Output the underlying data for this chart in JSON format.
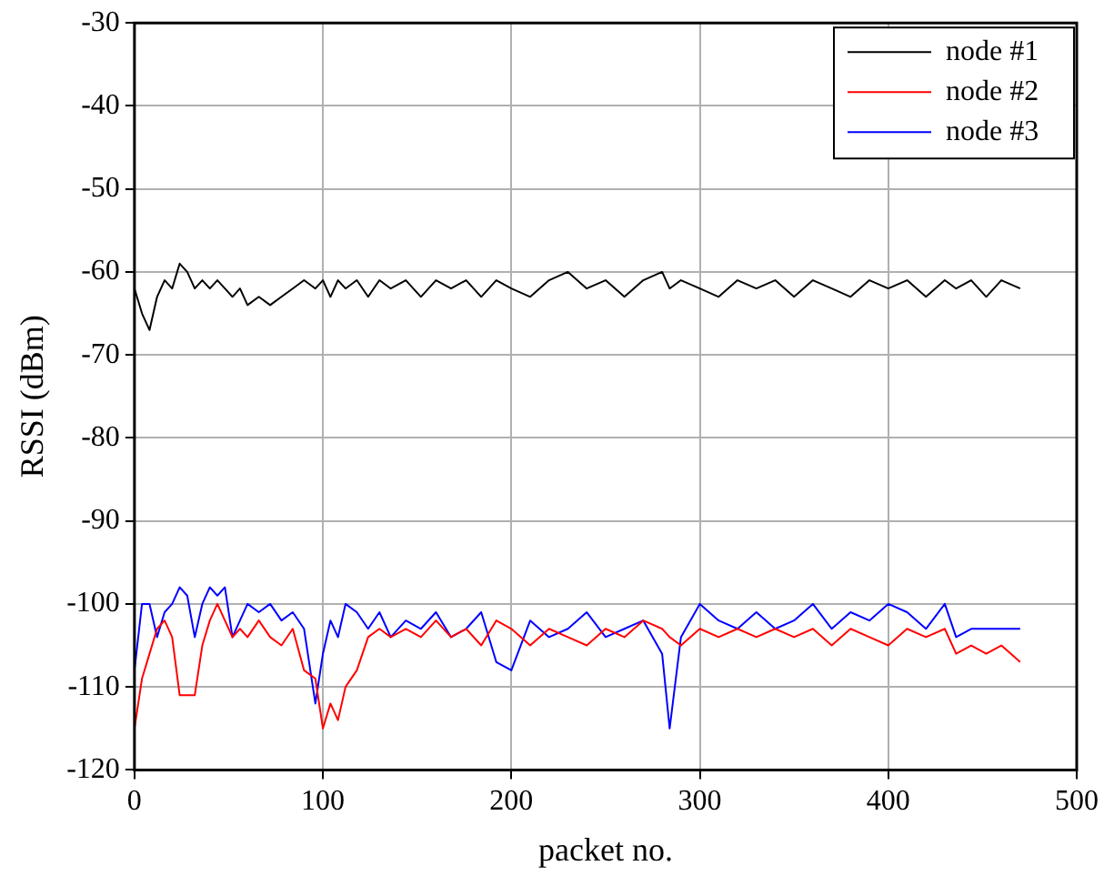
{
  "chart_data": {
    "type": "line",
    "xlabel": "packet no.",
    "ylabel": "RSSI (dBm)",
    "x": [
      0,
      4,
      8,
      12,
      16,
      20,
      24,
      28,
      32,
      36,
      40,
      44,
      48,
      52,
      56,
      60,
      66,
      72,
      78,
      84,
      90,
      96,
      100,
      104,
      108,
      112,
      118,
      124,
      130,
      136,
      144,
      152,
      160,
      168,
      176,
      184,
      192,
      200,
      210,
      220,
      230,
      240,
      250,
      260,
      270,
      280,
      284,
      290,
      300,
      310,
      320,
      330,
      340,
      350,
      360,
      370,
      380,
      390,
      400,
      410,
      420,
      430,
      436,
      444,
      452,
      460,
      470
    ],
    "series": [
      {
        "name": "node #1",
        "color": "#000000",
        "values": [
          -62,
          -65,
          -67,
          -63,
          -61,
          -62,
          -59,
          -60,
          -62,
          -61,
          -62,
          -61,
          -62,
          -63,
          -62,
          -64,
          -63,
          -64,
          -63,
          -62,
          -61,
          -62,
          -61,
          -63,
          -61,
          -62,
          -61,
          -63,
          -61,
          -62,
          -61,
          -63,
          -61,
          -62,
          -61,
          -63,
          -61,
          -62,
          -63,
          -61,
          -60,
          -62,
          -61,
          -63,
          -61,
          -60,
          -62,
          -61,
          -62,
          -63,
          -61,
          -62,
          -61,
          -63,
          -61,
          -62,
          -63,
          -61,
          -62,
          -61,
          -63,
          -61,
          -62,
          -61,
          -63,
          -61,
          -62
        ]
      },
      {
        "name": "node #2",
        "color": "#ff0000",
        "values": [
          -115,
          -109,
          -106,
          -103,
          -102,
          -104,
          -111,
          -111,
          -111,
          -105,
          -102,
          -100,
          -102,
          -104,
          -103,
          -104,
          -102,
          -104,
          -105,
          -103,
          -108,
          -109,
          -115,
          -112,
          -114,
          -110,
          -108,
          -104,
          -103,
          -104,
          -103,
          -104,
          -102,
          -104,
          -103,
          -105,
          -102,
          -103,
          -105,
          -103,
          -104,
          -105,
          -103,
          -104,
          -102,
          -103,
          -104,
          -105,
          -103,
          -104,
          -103,
          -104,
          -103,
          -104,
          -103,
          -105,
          -103,
          -104,
          -105,
          -103,
          -104,
          -103,
          -106,
          -105,
          -106,
          -105,
          -107
        ]
      },
      {
        "name": "node #3",
        "color": "#0000ff",
        "values": [
          -108,
          -100,
          -100,
          -104,
          -101,
          -100,
          -98,
          -99,
          -104,
          -100,
          -98,
          -99,
          -98,
          -104,
          -102,
          -100,
          -101,
          -100,
          -102,
          -101,
          -103,
          -112,
          -106,
          -102,
          -104,
          -100,
          -101,
          -103,
          -101,
          -104,
          -102,
          -103,
          -101,
          -104,
          -103,
          -101,
          -107,
          -108,
          -102,
          -104,
          -103,
          -101,
          -104,
          -103,
          -102,
          -106,
          -115,
          -104,
          -100,
          -102,
          -103,
          -101,
          -103,
          -102,
          -100,
          -103,
          -101,
          -102,
          -100,
          -101,
          -103,
          -100,
          -104,
          -103,
          -103,
          -103,
          -103
        ]
      }
    ],
    "xlim": [
      0,
      500
    ],
    "xticks": [
      0,
      100,
      200,
      300,
      400,
      500
    ],
    "ylim": [
      -120,
      -30
    ],
    "yticks": [
      -120,
      -110,
      -100,
      -90,
      -80,
      -70,
      -60,
      -50,
      -40,
      -30
    ],
    "grid": true,
    "legend": "top right",
    "marker": "none",
    "line_style": "solid"
  }
}
